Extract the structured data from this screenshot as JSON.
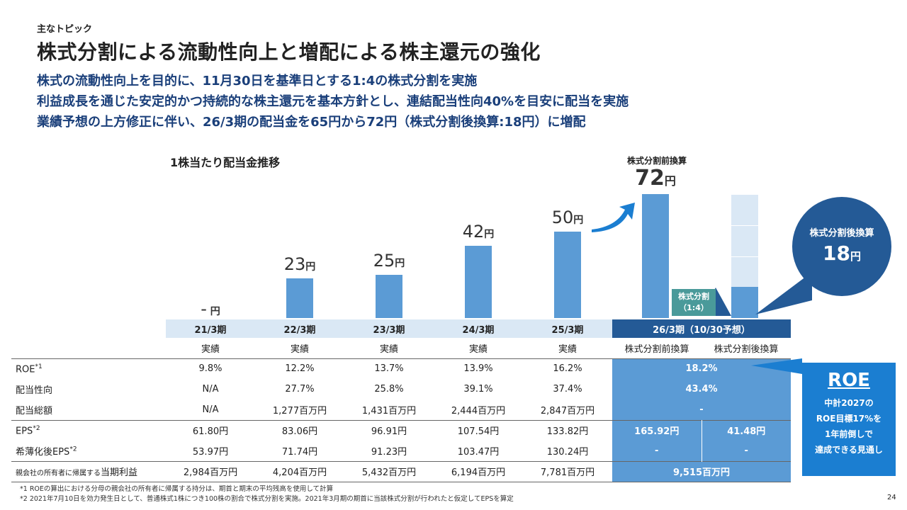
{
  "header": {
    "eyebrow": "主なトピック",
    "title": "株式分割による流動性向上と増配による株主還元の強化",
    "points": [
      "株式の流動性向上を目的に、11月30日を基準日とする1:4の株式分割を実施",
      "利益成長を通じた安定的かつ持続的な株主還元を基本方針とし、連結配当性向40%を目安に配当を実施",
      "業績予想の上方修正に伴い、26/3期の配当金を65円から72円（株式分割後換算:18円）に増配"
    ]
  },
  "chart_data": {
    "type": "bar",
    "title": "1株当たり配当金推移",
    "unit": "円",
    "categories": [
      "21/3期",
      "22/3期",
      "23/3期",
      "24/3期",
      "25/3期",
      "26/3期（10/30予想）"
    ],
    "values": [
      null,
      23,
      25,
      42,
      50,
      72
    ],
    "value_labels": [
      "-",
      "23",
      "25",
      "42",
      "50",
      "72"
    ],
    "post_split_value": 18,
    "post_split_segments": 4,
    "ylim": [
      0,
      72
    ],
    "pre_split_label": "株式分割前換算",
    "split_label_line1": "株式分割",
    "split_label_line2": "（1:4）",
    "post_split_bubble_title": "株式分割後換算",
    "post_split_bubble_value": "18"
  },
  "table": {
    "type_row": [
      "実績",
      "実績",
      "実績",
      "実績",
      "実績",
      "株式分割前換算",
      "株式分割後換算"
    ],
    "rows": [
      {
        "label": "ROE",
        "sup": "*1",
        "values": [
          "9.8%",
          "12.2%",
          "13.7%",
          "13.9%",
          "16.2%"
        ],
        "merged": "18.2%"
      },
      {
        "label": "配当性向",
        "sup": "",
        "values": [
          "N/A",
          "27.7%",
          "25.8%",
          "39.1%",
          "37.4%"
        ],
        "merged": "43.4%"
      },
      {
        "label": "配当総額",
        "sup": "",
        "values": [
          "N/A",
          "1,277百万円",
          "1,431百万円",
          "2,444百万円",
          "2,847百万円"
        ],
        "merged": "-"
      },
      {
        "label": "EPS",
        "sup": "*2",
        "values": [
          "61.80円",
          "83.06円",
          "96.91円",
          "107.54円",
          "133.82円"
        ],
        "pre": "165.92円",
        "post": "41.48円"
      },
      {
        "label": "希薄化後EPS",
        "sup": "*2",
        "values": [
          "53.97円",
          "71.74円",
          "91.23円",
          "103.47円",
          "130.24円"
        ],
        "pre": "-",
        "post": "-"
      },
      {
        "label_small": "親会社の所有者に帰属する",
        "label": "当期利益",
        "sup": "",
        "values": [
          "2,984百万円",
          "4,204百万円",
          "5,432百万円",
          "6,194百万円",
          "7,781百万円"
        ],
        "merged": "9,515百万円"
      }
    ]
  },
  "roe_box": {
    "heading": "ROE",
    "lines": [
      "中計2027の",
      "ROE目標17%を",
      "1年前倒しで",
      "達成できる見通し"
    ]
  },
  "footnotes": [
    "*1  ROEの算出における分母の親会社の所有者に帰属する持分は、期首と期末の平均残高を使用して計算",
    "*2  2021年7月10日を効力発生日として、普通株式1株につき100株の割合で株式分割を実施。2021年3月期の期首に当該株式分割が行われたと仮定してEPSを算定"
  ],
  "page_number": "24",
  "colors": {
    "bar": "#5b9bd5",
    "dark": "#245a96",
    "accent": "#1b7ed1",
    "teal": "#4a9a9a",
    "band": "#dae8f5"
  }
}
